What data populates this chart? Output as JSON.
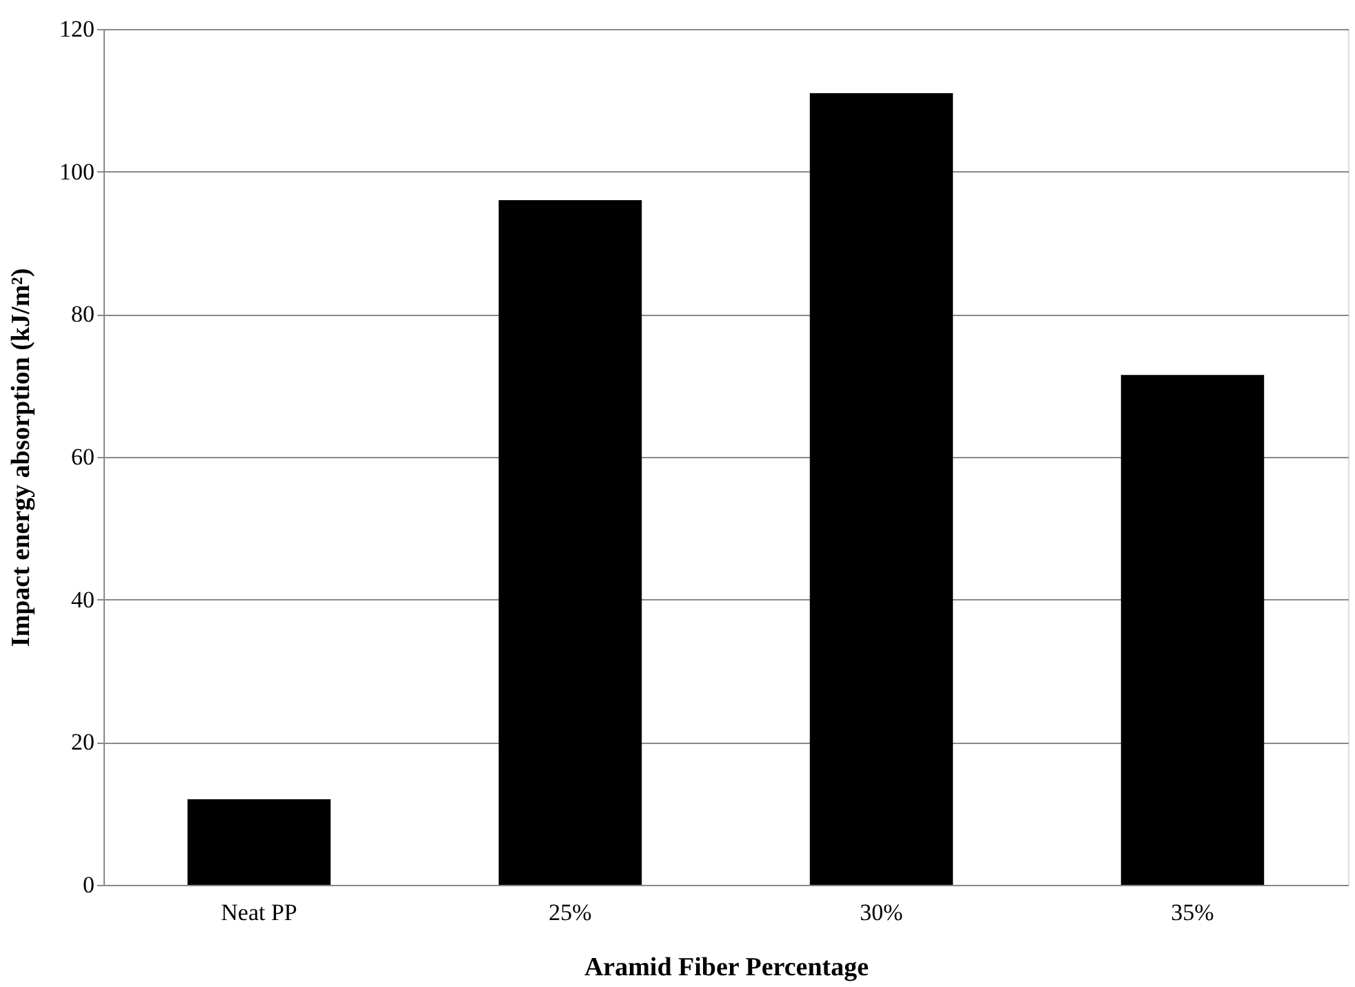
{
  "chart_data": {
    "type": "bar",
    "xlabel": "Aramid Fiber Percentage",
    "ylabel": "Impact energy absorption (kJ/m²)",
    "categories": [
      "Neat PP",
      "25%",
      "30%",
      "35%"
    ],
    "values": [
      12,
      96,
      111,
      71.5
    ],
    "color": "#000000",
    "ylim": [
      0,
      120
    ],
    "yticks": [
      0,
      20,
      40,
      60,
      80,
      100,
      120
    ],
    "grid": "y"
  }
}
